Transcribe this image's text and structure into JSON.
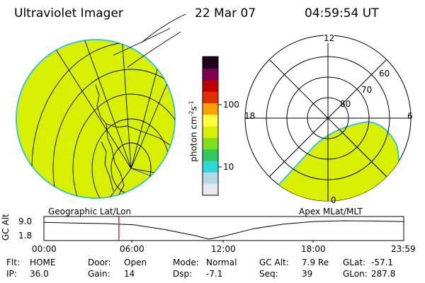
{
  "header": {
    "instrument": "Ultraviolet Imager",
    "date": "22 Mar 07",
    "time": "04:59:54 UT"
  },
  "colorbar": {
    "label_base": "photon cm",
    "label_exp1": "-2",
    "label_mid": "s",
    "label_exp2": "-1",
    "ticks": [
      "100",
      "10"
    ]
  },
  "geo_panel": {
    "label": "Geographic Lat/Lon"
  },
  "polar_panel": {
    "label": "Apex MLat/MLT",
    "mlt_labels": {
      "top": "12",
      "left": "18",
      "right": "6",
      "bottom": "0"
    },
    "lat_labels": [
      "60",
      "70",
      "80"
    ]
  },
  "timeline": {
    "axis_label": "GC Alt",
    "y_ticks": [
      "9.0",
      "1.8"
    ],
    "x_ticks": [
      "00:00",
      "06:00",
      "12:00",
      "18:00",
      "23:59"
    ],
    "current_time": "04:59:54"
  },
  "info": {
    "row1": [
      {
        "key": "Flt:",
        "val": "HOME"
      },
      {
        "key": "Door:",
        "val": "Open"
      },
      {
        "key": "Mode:",
        "val": "Normal"
      },
      {
        "key": "GC Alt:",
        "val": "7.9 Re"
      },
      {
        "key": "GLat:",
        "val": "-57.1"
      }
    ],
    "row2": [
      {
        "key": "IP:",
        "val": "36.0"
      },
      {
        "key": "Gain:",
        "val": "14"
      },
      {
        "key": "Dsp:",
        "val": "-7.1"
      },
      {
        "key": "Seq:",
        "val": "39"
      },
      {
        "key": "GLon:",
        "val": "287.8"
      }
    ]
  },
  "colors": {
    "fill": "#d8f000",
    "fill_edge": "#40c8c0",
    "marker": "#d00000",
    "colorbar_stops": [
      "#e8e8f0",
      "#b8d8e8",
      "#30d8d8",
      "#30c860",
      "#80e020",
      "#d8f000",
      "#ffff40",
      "#ffa000",
      "#e03000",
      "#c00000",
      "#800050",
      "#200020"
    ]
  },
  "chart_data": {
    "type": "line",
    "title": "Ultraviolet Imager",
    "xlabel": "",
    "ylabel": "GC Alt",
    "x": [
      "00:00",
      "02:00",
      "04:00",
      "06:00",
      "08:00",
      "10:00",
      "11:00",
      "12:00",
      "14:00",
      "16:00",
      "18:00",
      "20:00",
      "22:00",
      "23:59"
    ],
    "series": [
      {
        "values": [
          8.4,
          8.1,
          7.9,
          7.4,
          5.6,
          3.3,
          1.8,
          3.0,
          5.9,
          7.7,
          8.7,
          9.0,
          8.9,
          8.7
        ]
      }
    ],
    "ylim": [
      1.8,
      9.0
    ],
    "current_time_hours": 5.0
  }
}
